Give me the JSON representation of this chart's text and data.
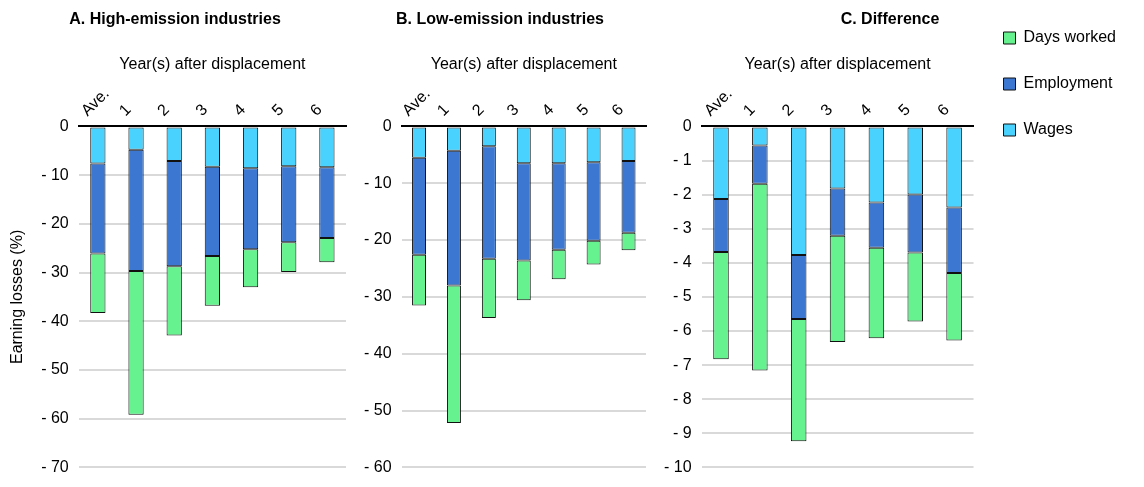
{
  "chart_data": [
    {
      "type": "bar",
      "title": "A. High-emission industries",
      "xlabel": "Year(s) after displacement",
      "ylabel": "Earning losses (%)",
      "categories": [
        "Ave.",
        "1",
        "2",
        "3",
        "4",
        "5",
        "6"
      ],
      "stacked": true,
      "grid": "y",
      "ylim": [
        -70,
        0
      ],
      "yticks": [
        {
          "value": 0,
          "label": "0"
        },
        {
          "value": -10,
          "label": "- 10"
        },
        {
          "value": -20,
          "label": "- 20"
        },
        {
          "value": -30,
          "label": "- 30"
        },
        {
          "value": -40,
          "label": "- 40"
        },
        {
          "value": -50,
          "label": "- 50"
        },
        {
          "value": -60,
          "label": "- 60"
        },
        {
          "value": -70,
          "label": "- 70"
        }
      ],
      "series": [
        {
          "color": "#48d2fd",
          "values": [
            -7.6,
            -4.8,
            -7.1,
            -8.3,
            -8.6,
            -8.2,
            -8.4
          ]
        },
        {
          "color": "#3c78d2",
          "values": [
            -18.5,
            -24.9,
            -21.6,
            -18.3,
            -16.6,
            -15.6,
            -14.5
          ]
        },
        {
          "color": "#67f290",
          "values": [
            -12.2,
            -29.5,
            -14.2,
            -10.2,
            -7.8,
            -6.1,
            -5.0
          ]
        }
      ]
    },
    {
      "type": "bar",
      "title": "B. Low-emission industries",
      "xlabel": "Year(s) after displacement",
      "categories": [
        "Ave.",
        "1",
        "2",
        "3",
        "4",
        "5",
        "6"
      ],
      "stacked": true,
      "grid": "y",
      "ylim": [
        -60,
        0
      ],
      "yticks": [
        {
          "value": 0,
          "label": "0"
        },
        {
          "value": -10,
          "label": "- 10"
        },
        {
          "value": -20,
          "label": "- 20"
        },
        {
          "value": -30,
          "label": "- 30"
        },
        {
          "value": -40,
          "label": "- 40"
        },
        {
          "value": -50,
          "label": "- 50"
        },
        {
          "value": -60,
          "label": "- 60"
        }
      ],
      "series": [
        {
          "color": "#48d2fd",
          "values": [
            -5.5,
            -4.3,
            -3.5,
            -6.5,
            -6.5,
            -6.3,
            -6.1
          ]
        },
        {
          "color": "#3c78d2",
          "values": [
            -17.1,
            -23.7,
            -19.8,
            -17.1,
            -15.2,
            -13.8,
            -12.6
          ]
        },
        {
          "color": "#67f290",
          "values": [
            -8.9,
            -24.2,
            -10.4,
            -7.0,
            -5.2,
            -4.2,
            -3.1
          ]
        }
      ]
    },
    {
      "type": "bar",
      "title": "C. Difference",
      "xlabel": "Year(s) after displacement",
      "categories": [
        "Ave.",
        "1",
        "2",
        "3",
        "4",
        "5",
        "6"
      ],
      "stacked": true,
      "grid": "y",
      "legend": "right",
      "ylim": [
        -10,
        0
      ],
      "yticks": [
        {
          "value": 0,
          "label": "0"
        },
        {
          "value": -1,
          "label": "- 1"
        },
        {
          "value": -2,
          "label": "- 2"
        },
        {
          "value": -3,
          "label": "- 3"
        },
        {
          "value": -4,
          "label": "- 4"
        },
        {
          "value": -5,
          "label": "- 5"
        },
        {
          "value": -6,
          "label": "- 6"
        },
        {
          "value": -7,
          "label": "- 7"
        },
        {
          "value": -8,
          "label": "- 8"
        },
        {
          "value": -9,
          "label": "- 9"
        },
        {
          "value": -10,
          "label": "- 10"
        }
      ],
      "series": [
        {
          "name": "Wages",
          "color": "#48d2fd",
          "values": [
            -2.13,
            -0.56,
            -3.77,
            -1.82,
            -2.23,
            -2.0,
            -2.38
          ]
        },
        {
          "name": "Employment",
          "color": "#3c78d2",
          "values": [
            -1.55,
            -1.12,
            -1.88,
            -1.39,
            -1.33,
            -1.7,
            -1.92
          ]
        },
        {
          "name": "Days worked",
          "color": "#67f290",
          "values": [
            -3.15,
            -5.48,
            -3.58,
            -3.11,
            -2.65,
            -2.02,
            -1.98
          ]
        }
      ]
    }
  ]
}
